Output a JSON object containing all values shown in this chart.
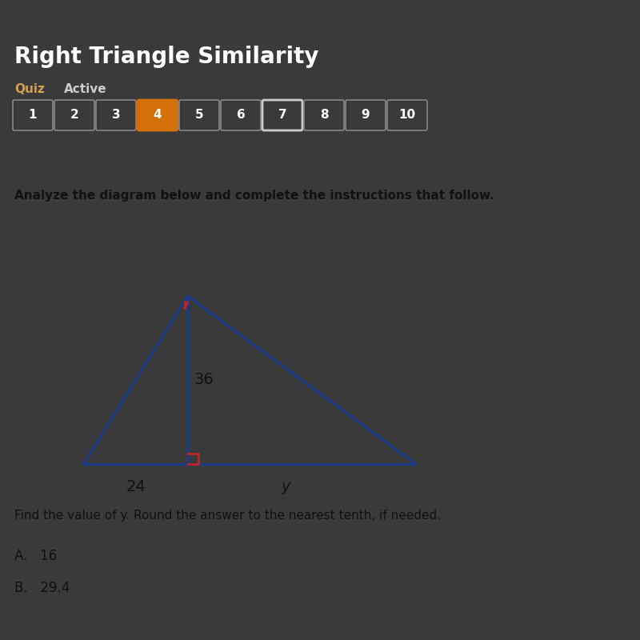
{
  "title": "Right Triangle Similarity",
  "subtitle_left": "Quiz",
  "subtitle_right": "Active",
  "quiz_numbers": [
    1,
    2,
    3,
    4,
    5,
    6,
    7,
    8,
    9,
    10
  ],
  "active_number": 4,
  "outlined_number": 7,
  "analyze_text": "Analyze the diagram below and complete the instructions that follow.",
  "label_36": "36",
  "label_24": "24",
  "label_y": "y",
  "question_text": "Find the value of y. Round the answer to the nearest tenth, if needed.",
  "answer_A": "A.   16",
  "answer_B": "B.   29.4",
  "bg_dark": "#3a3a3a",
  "bg_header_blue": "#1e3a6e",
  "bg_content": "#ddd8d2",
  "triangle_color": "#1a3a8a",
  "right_angle_color": "#cc2222",
  "top_angle_color": "#cc2222",
  "number_box_active_bg": "#d4700a",
  "number_box_active_edge": "#d4700a",
  "number_box_outlined_bg": "#3a3a3a",
  "number_box_outlined_edge": "#cccccc",
  "number_box_default_bg": "#3a3a3a",
  "number_box_default_edge": "#888888",
  "number_text_color": "#ffffff",
  "quiz_label_color": "#d4a050",
  "active_label_color": "#cccccc",
  "title_color": "#ffffff",
  "content_text_color": "#111111"
}
